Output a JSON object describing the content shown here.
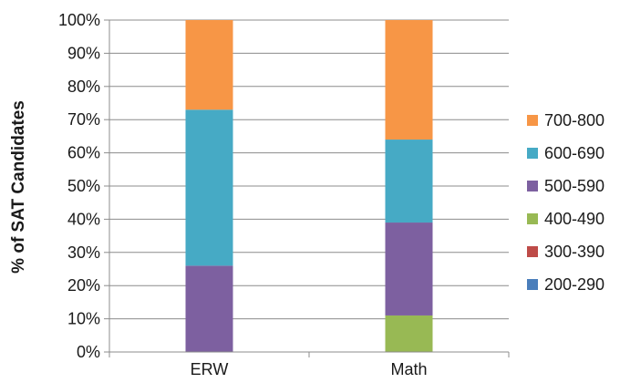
{
  "chart_data": {
    "type": "bar",
    "stacked": true,
    "categories": [
      "ERW",
      "Math"
    ],
    "ylabel": "% of SAT Candidates",
    "ylim": [
      0,
      100
    ],
    "yticks": [
      "0%",
      "10%",
      "20%",
      "30%",
      "40%",
      "50%",
      "60%",
      "70%",
      "80%",
      "90%",
      "100%"
    ],
    "grid": true,
    "legend_position": "right",
    "series": [
      {
        "name": "200-290",
        "color": "#4a7ebb",
        "values": [
          0,
          0
        ]
      },
      {
        "name": "300-390",
        "color": "#be4b48",
        "values": [
          0,
          0
        ]
      },
      {
        "name": "400-490",
        "color": "#98b954",
        "values": [
          0,
          11
        ]
      },
      {
        "name": "500-590",
        "color": "#7d60a0",
        "values": [
          26,
          28
        ]
      },
      {
        "name": "600-690",
        "color": "#46aac5",
        "values": [
          47,
          25
        ]
      },
      {
        "name": "700-800",
        "color": "#f79646",
        "values": [
          27,
          36
        ]
      }
    ]
  }
}
